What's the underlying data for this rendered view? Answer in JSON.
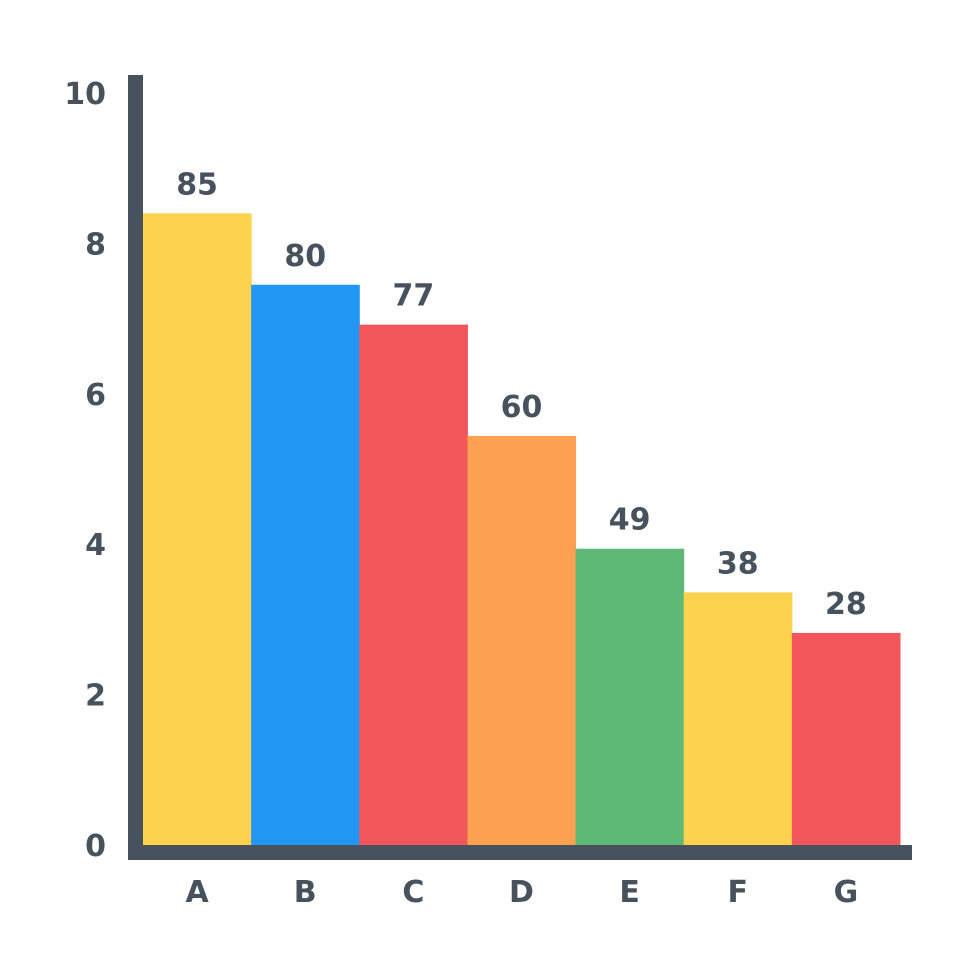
{
  "chart_data": {
    "type": "bar",
    "title": "",
    "xlabel": "",
    "ylabel": "",
    "categories": [
      "A",
      "B",
      "C",
      "D",
      "E",
      "F",
      "G"
    ],
    "values": [
      85,
      80,
      77,
      60,
      49,
      38,
      28
    ],
    "value_labels": [
      "85",
      "80",
      "77",
      "60",
      "49",
      "38",
      "28"
    ],
    "bar_heights_on_axis": [
      8.4,
      7.45,
      6.92,
      5.44,
      3.94,
      3.36,
      2.82
    ],
    "y_ticks": [
      0,
      2,
      4,
      6,
      8,
      10
    ],
    "y_tick_labels": [
      "0",
      "2",
      "4",
      "6",
      "8",
      "10"
    ],
    "ylim": [
      0,
      10
    ],
    "grid": false,
    "legend": "none",
    "bar_colors": [
      "#fdd24e",
      "#2196f3",
      "#f3565a",
      "#fda04f",
      "#5db975",
      "#fdd24e",
      "#f3565a"
    ],
    "axis_color": "#47525d",
    "text_color": "#47525d"
  }
}
